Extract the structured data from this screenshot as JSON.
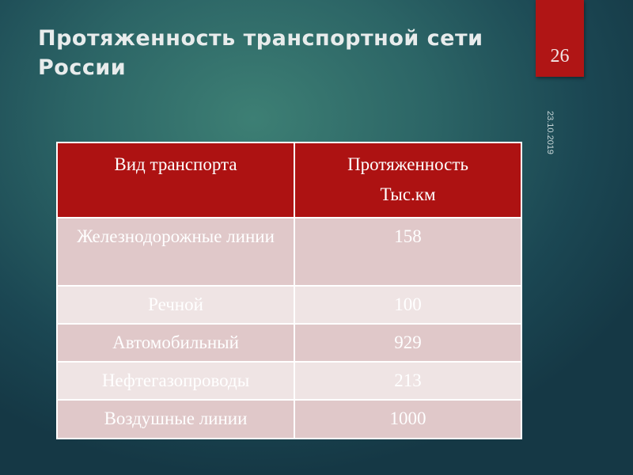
{
  "slide": {
    "title": "Протяженность транспортной сети России",
    "page_number": "26",
    "date": "23.10.2019"
  },
  "table": {
    "headers": [
      "Вид транспорта",
      "Протяженность Тыс.км"
    ],
    "header_lines": [
      "Протяженность",
      "Тыс.км"
    ],
    "rows": [
      {
        "type": "Железнодорожные линии",
        "length": "158"
      },
      {
        "type": "Речной",
        "length": "100"
      },
      {
        "type": "Автомобильный",
        "length": "929"
      },
      {
        "type": "Нефтегазопроводы",
        "length": "213"
      },
      {
        "type": "Воздушные линии",
        "length": "1000"
      }
    ]
  },
  "colors": {
    "accent": "#ad1212",
    "row_dark": "#e0c8c9",
    "row_light": "#efe4e4"
  }
}
